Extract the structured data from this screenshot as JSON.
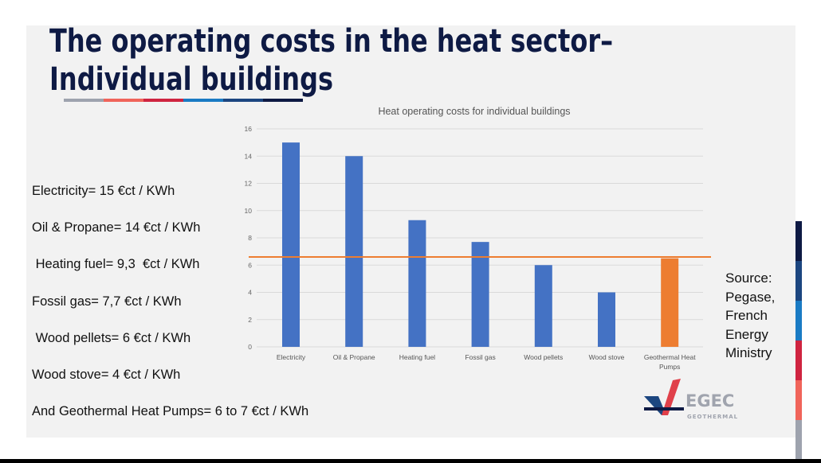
{
  "slide": {
    "title_line1": "The operating costs in the heat sector–",
    "title_line2": "Individual buildings",
    "title_color": "#0e1a44",
    "underline_colors": [
      "#9ea3ae",
      "#f0645a",
      "#cf2440",
      "#1a7bc4",
      "#1c4680",
      "#0e1a44"
    ],
    "side_strip_colors": [
      "#0e1a44",
      "#1c4680",
      "#1a7bc4",
      "#cf2440",
      "#f0645a",
      "#9ea3ae"
    ],
    "facts": [
      "Electricity= 15 €ct / KWh",
      "Oil & Propane= 14 €ct / KWh",
      " Heating fuel= 9,3  €ct / KWh",
      "Fossil gas= 7,7 €ct / KWh",
      " Wood pellets= 6 €ct / KWh",
      "Wood stove= 4 €ct / KWh",
      "And Geothermal Heat Pumps= 6 to 7 €ct / KWh"
    ],
    "source_lines": [
      "Source:",
      "Pegase,",
      "French",
      "Energy",
      "Ministry"
    ],
    "logo": {
      "name": "EGEC",
      "sub": "GEOTHERMAL"
    }
  },
  "chart_data": {
    "type": "bar",
    "title": "Heat operating costs for individual buildings",
    "categories": [
      "Electricity",
      "Oil & Propane",
      "Heating fuel",
      "Fossil gas",
      "Wood pellets",
      "Wood stove",
      "Geothermal Heat Pumps"
    ],
    "category_label_lines": [
      [
        "Electricity"
      ],
      [
        "Oil & Propane"
      ],
      [
        "Heating fuel"
      ],
      [
        "Fossil gas"
      ],
      [
        "Wood pellets"
      ],
      [
        "Wood stove"
      ],
      [
        "Geothermal Heat",
        "Pumps"
      ]
    ],
    "values": [
      15,
      14,
      9.3,
      7.7,
      6,
      4,
      6.5
    ],
    "bar_colors": [
      "#4472c4",
      "#4472c4",
      "#4472c4",
      "#4472c4",
      "#4472c4",
      "#4472c4",
      "#ed7d31"
    ],
    "reference_line": {
      "value": 6.6,
      "color": "#ed7d31"
    },
    "ylim": [
      0,
      16
    ],
    "yticks": [
      0,
      2,
      4,
      6,
      8,
      10,
      12,
      14,
      16
    ],
    "grid": true,
    "xlabel": "",
    "ylabel": ""
  }
}
